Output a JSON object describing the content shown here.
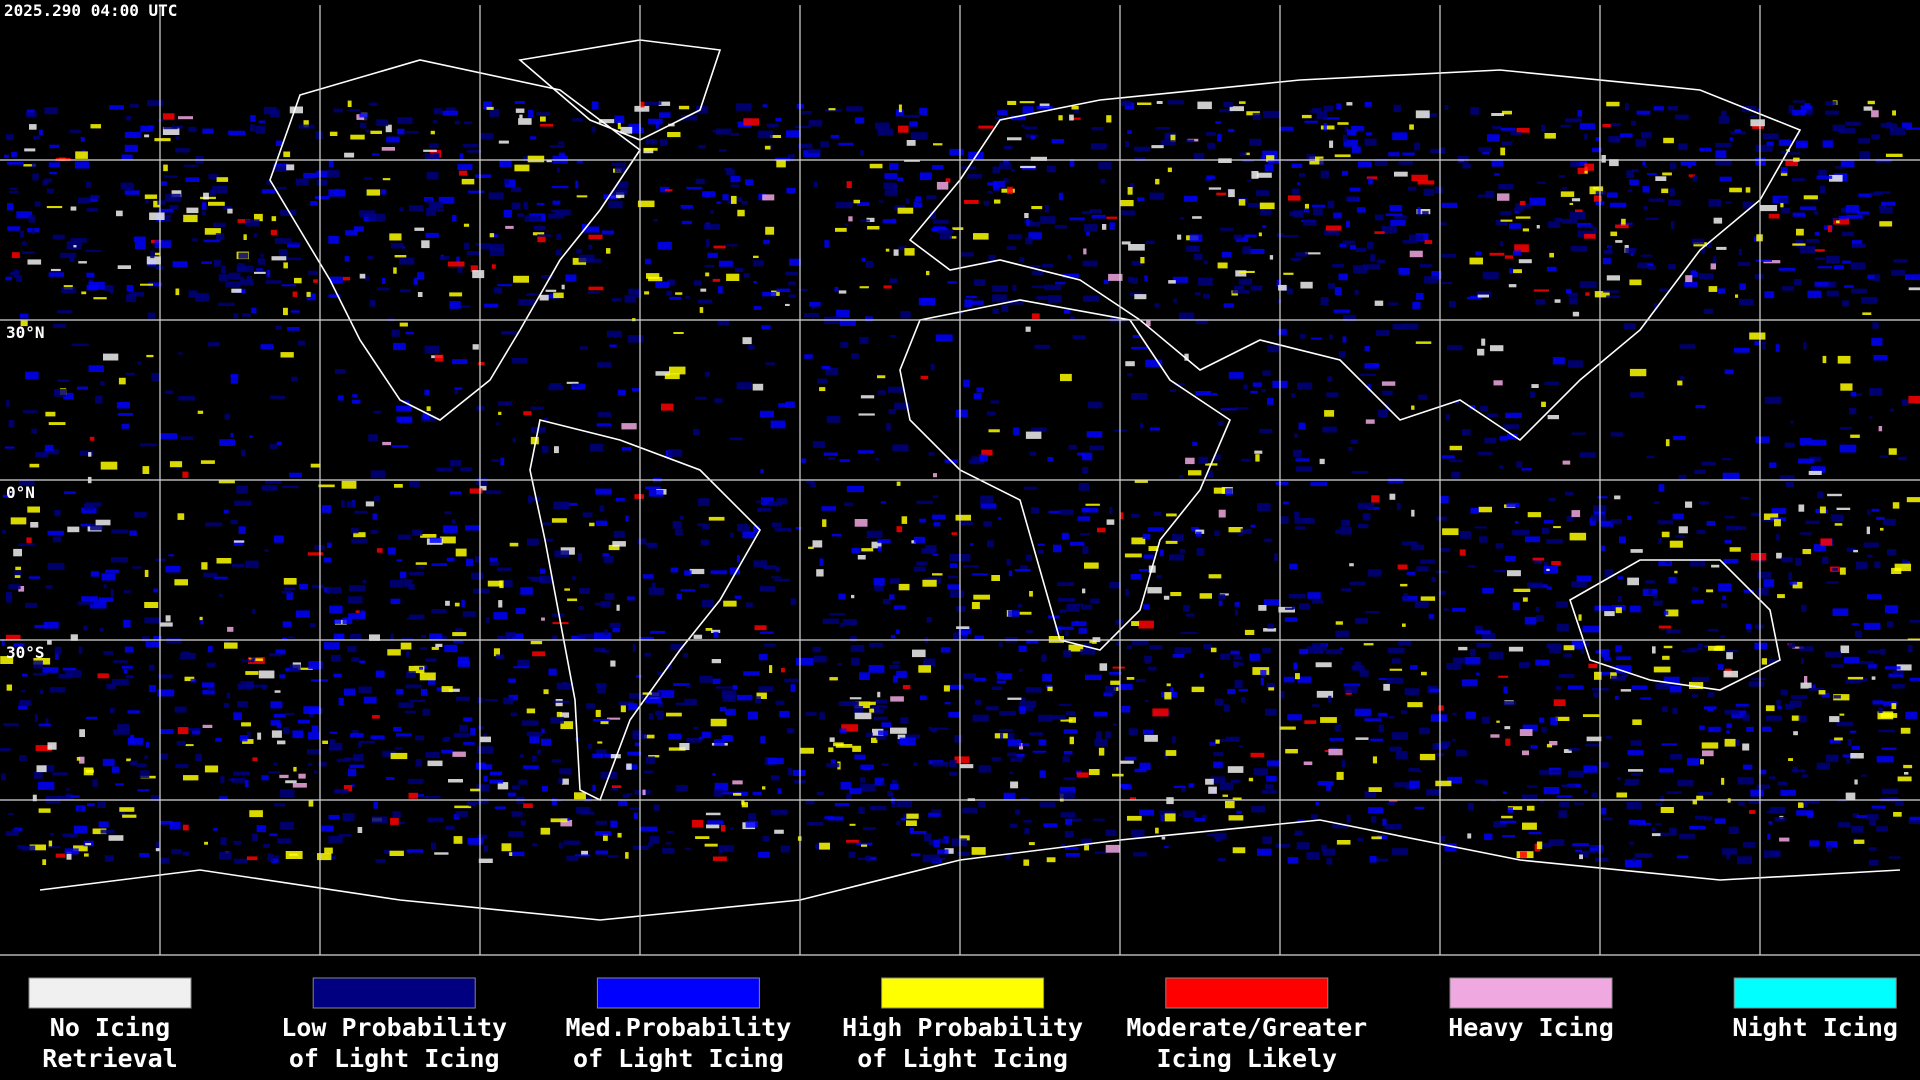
{
  "header": {
    "timestamp": "2025.290 04:00 UTC"
  },
  "latitude_labels": [
    "30°N",
    "0°N",
    "30°S"
  ],
  "legend": {
    "items": [
      {
        "label_lines": [
          "No Icing",
          "Retrieval"
        ],
        "color": "#f0f0f0"
      },
      {
        "label_lines": [
          "Low Probability",
          "of Light Icing"
        ],
        "color": "#000080"
      },
      {
        "label_lines": [
          "Med.Probability",
          "of Light Icing"
        ],
        "color": "#0000ff"
      },
      {
        "label_lines": [
          "High Probability",
          "of Light Icing"
        ],
        "color": "#ffff00"
      },
      {
        "label_lines": [
          "Moderate/Greater",
          "Icing Likely"
        ],
        "color": "#ff0000"
      },
      {
        "label_lines": [
          "Heavy Icing"
        ],
        "color": "#f0a8e0"
      },
      {
        "label_lines": [
          "Night Icing"
        ],
        "color": "#00ffff"
      }
    ]
  }
}
